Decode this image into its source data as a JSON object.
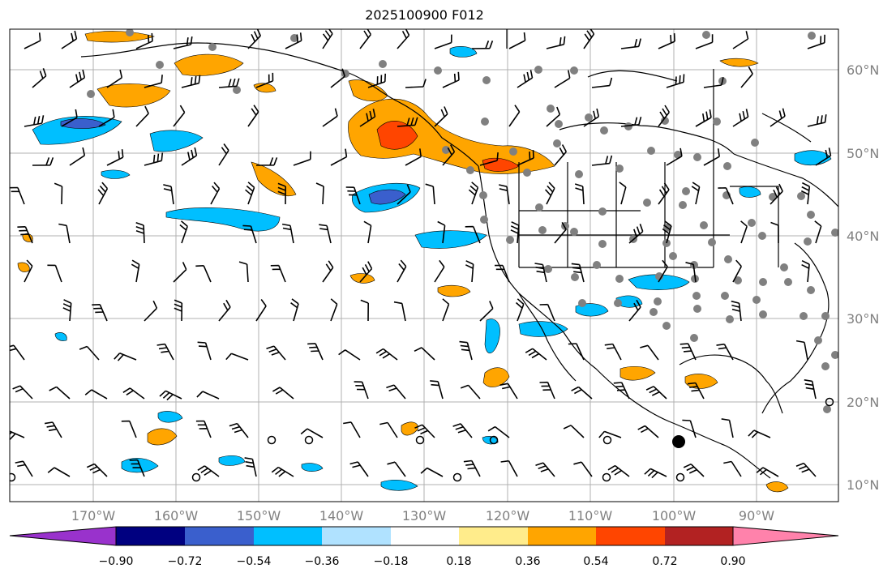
{
  "title": "2025100900 F012",
  "lon_labels": [
    "170°W",
    "160°W",
    "150°W",
    "140°W",
    "130°W",
    "120°W",
    "110°W",
    "100°W",
    "90°W"
  ],
  "lat_labels": [
    "60°N",
    "50°N",
    "40°N",
    "30°N",
    "20°N",
    "10°N"
  ],
  "colorbar": {
    "colors": [
      "#9932cc",
      "#000080",
      "#3a5fcd",
      "#00bfff",
      "#b0e2ff",
      "#ffffff",
      "#ffec8b",
      "#ffa500",
      "#ff4500",
      "#b22222",
      "#ff82ab"
    ],
    "labels": [
      "−0.90",
      "−0.72",
      "−0.54",
      "−0.36",
      "−0.18",
      "0.18",
      "0.36",
      "0.54",
      "0.72",
      "0.90"
    ]
  },
  "colors": {
    "ocean": "#ffffff",
    "grid": "#b0b0b0",
    "station": "#808080",
    "barb": "#000000",
    "coast": "#000000"
  }
}
